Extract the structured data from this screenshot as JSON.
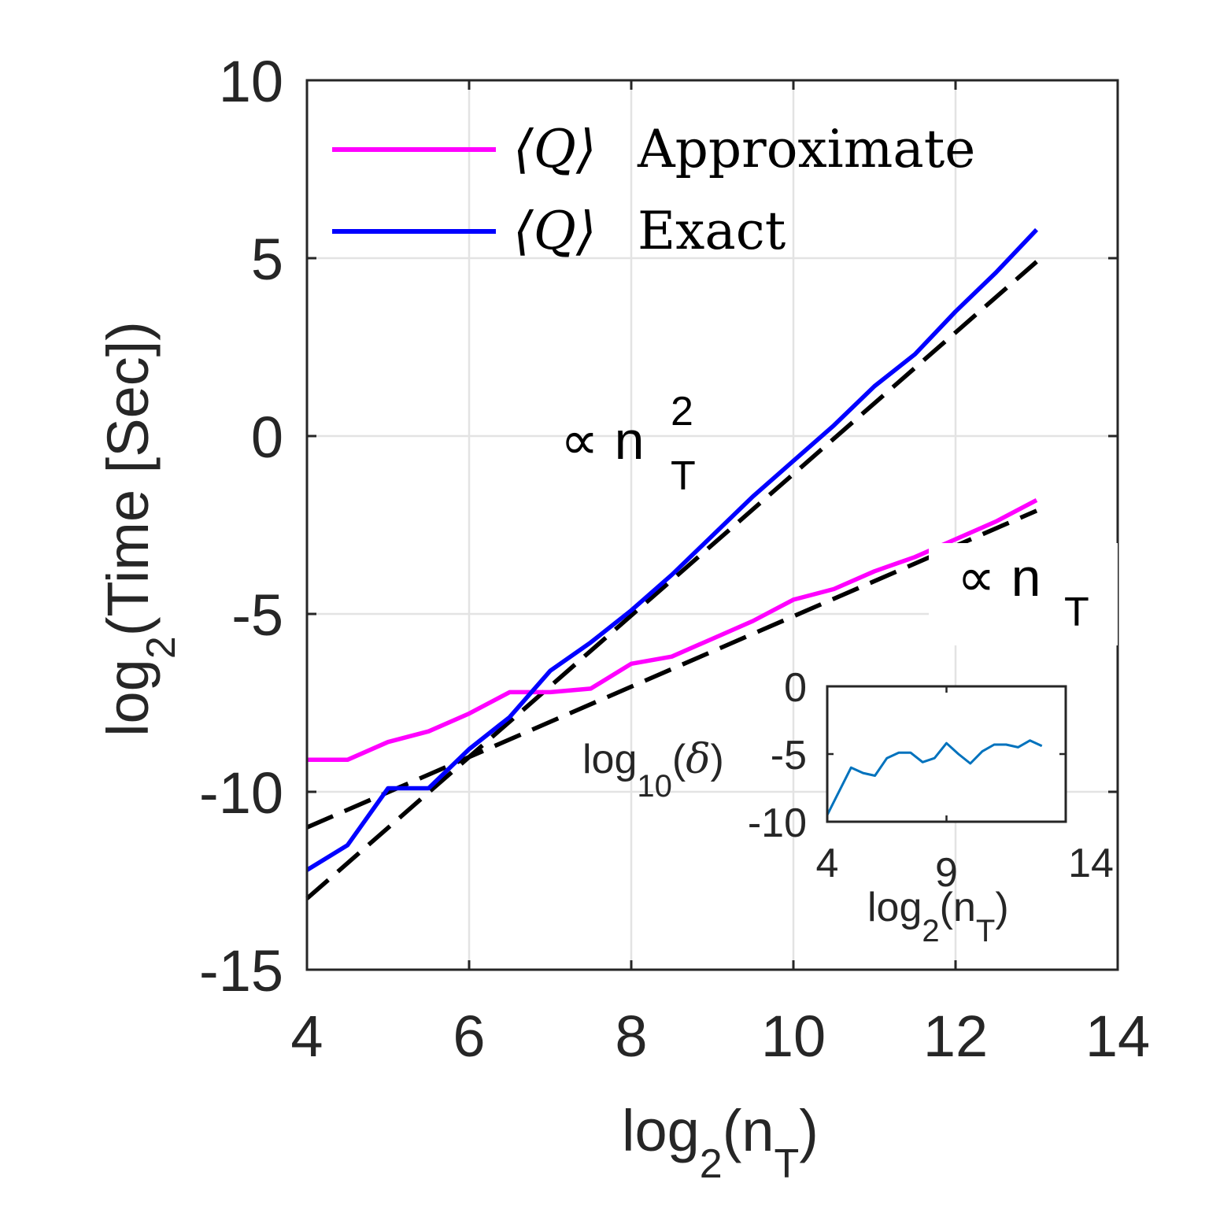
{
  "chart_data": [
    {
      "id": "main",
      "type": "line",
      "xlabel": {
        "base": "log",
        "sub": "2",
        "open": "(n",
        "var_sub": "T",
        "close": ")"
      },
      "ylabel": {
        "base": "log",
        "sub": "2",
        "rest": "(Time [Sec])"
      },
      "xlim": [
        4,
        14
      ],
      "ylim": [
        -15,
        10
      ],
      "xticks": [
        4,
        6,
        8,
        10,
        12,
        14
      ],
      "yticks": [
        -15,
        -10,
        -5,
        0,
        5,
        10
      ],
      "xtick_labels": [
        "4",
        "6",
        "8",
        "10",
        "12",
        "14"
      ],
      "ytick_labels": [
        "-15",
        "-10",
        "-5",
        "0",
        "5",
        "10"
      ],
      "grid": true,
      "series": [
        {
          "name": "⟨Q⟩ Approximate",
          "legend_symbol": "⟨Q⟩",
          "legend_text": "Approximate",
          "color": "#ff00ff",
          "style": "solid",
          "x": [
            4,
            4.5,
            5,
            5.5,
            6,
            6.5,
            7,
            7.5,
            8,
            8.5,
            9,
            9.5,
            10,
            10.5,
            11,
            11.5,
            12,
            12.5,
            13
          ],
          "y": [
            -9.1,
            -9.1,
            -8.6,
            -8.3,
            -7.8,
            -7.2,
            -7.2,
            -7.1,
            -6.4,
            -6.2,
            -5.7,
            -5.2,
            -4.6,
            -4.3,
            -3.8,
            -3.4,
            -2.9,
            -2.4,
            -1.8
          ]
        },
        {
          "name": "⟨Q⟩ Exact",
          "legend_symbol": "⟨Q⟩",
          "legend_text": "Exact",
          "color": "#0000ff",
          "style": "solid",
          "x": [
            4,
            4.5,
            5,
            5.5,
            6,
            6.5,
            7,
            7.5,
            8,
            8.5,
            9,
            9.5,
            10,
            10.5,
            11,
            11.5,
            12,
            12.5,
            13
          ],
          "y": [
            -12.2,
            -11.5,
            -9.9,
            -9.9,
            -8.8,
            -7.9,
            -6.6,
            -5.8,
            -4.9,
            -3.9,
            -2.8,
            -1.7,
            -0.7,
            0.3,
            1.4,
            2.3,
            3.5,
            4.6,
            5.8
          ]
        },
        {
          "name": "n_T^2 reference",
          "color": "#000000",
          "style": "dashed",
          "x": [
            4,
            13
          ],
          "y": [
            -13.0,
            4.9
          ]
        },
        {
          "name": "n_T reference",
          "color": "#000000",
          "style": "dashed",
          "x": [
            4,
            13
          ],
          "y": [
            -11.0,
            -2.1
          ]
        }
      ],
      "annotations": [
        {
          "symbol": "∝",
          "base": "n",
          "sup": "2",
          "sub": "T",
          "x": 7.4,
          "y": -0.2
        },
        {
          "symbol": "∝",
          "base": "n",
          "sub": "T",
          "x": 12.1,
          "y": -4.1
        }
      ],
      "legend_position": "top-left"
    },
    {
      "id": "inset",
      "type": "line",
      "xlim": [
        4,
        14
      ],
      "ylim": [
        -10,
        0
      ],
      "xtick_labels": [
        "4",
        "9",
        "14"
      ],
      "ytick_labels": [
        "0",
        "-5",
        "-10"
      ],
      "xticks": [
        4,
        9,
        14
      ],
      "yticks": [
        0,
        -5,
        -10
      ],
      "xlabel": {
        "base": "log",
        "sub": "2",
        "open": "(n",
        "var_sub": "T",
        "close": ")"
      },
      "ylabel": {
        "base": "log",
        "sub": "10",
        "open": "(",
        "var": "δ",
        "close": ")"
      },
      "grid": false,
      "series": [
        {
          "name": "log10(delta)",
          "color": "#0072bd",
          "x": [
            4,
            5,
            5.5,
            6,
            6.5,
            7,
            7.5,
            8,
            8.5,
            9,
            9.5,
            10,
            10.5,
            11,
            11.5,
            12,
            12.5,
            13
          ],
          "y": [
            -9.5,
            -6.0,
            -6.4,
            -6.6,
            -5.3,
            -4.9,
            -4.9,
            -5.6,
            -5.3,
            -4.2,
            -5.0,
            -5.7,
            -4.8,
            -4.3,
            -4.3,
            -4.5,
            -4.0,
            -4.4
          ]
        }
      ]
    }
  ]
}
